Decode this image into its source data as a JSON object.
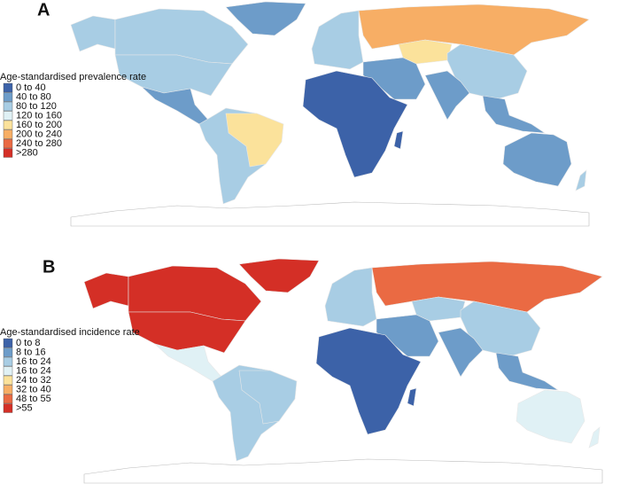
{
  "panels": [
    {
      "label": "A",
      "legend_title": "Age-standardised prevalence rate",
      "legend_items": [
        {
          "label": "0 to 40",
          "color": "#3c62a8"
        },
        {
          "label": "40 to 80",
          "color": "#6d9cc9"
        },
        {
          "label": "80 to 120",
          "color": "#a8cde4"
        },
        {
          "label": "120 to 160",
          "color": "#e0f1f5"
        },
        {
          "label": "160 to 200",
          "color": "#fbe29b"
        },
        {
          "label": "200 to 240",
          "color": "#f7ae65"
        },
        {
          "label": "240 to 280",
          "color": "#ea6a43"
        },
        {
          "label": ">280",
          "color": "#d42f26"
        }
      ]
    },
    {
      "label": "B",
      "legend_title": "Age-standardised incidence rate",
      "legend_items": [
        {
          "label": "0 to 8",
          "color": "#3c62a8"
        },
        {
          "label": "8 to 16",
          "color": "#6d9cc9"
        },
        {
          "label": "16 to 24",
          "color": "#a8cde4"
        },
        {
          "label": "16 to 24",
          "color": "#e0f1f5"
        },
        {
          "label": "24 to 32",
          "color": "#fbe29b"
        },
        {
          "label": "32 to 40",
          "color": "#f7ae65"
        },
        {
          "label": "48 to 55",
          "color": "#ea6a43"
        },
        {
          "label": ">55",
          "color": "#d42f26"
        }
      ]
    }
  ]
}
